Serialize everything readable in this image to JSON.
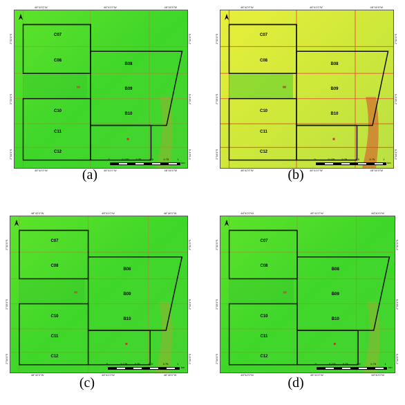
{
  "panels": [
    {
      "caption": "(a)",
      "theme": "green",
      "top_coords": [
        "48°42'0\"W",
        "48°41'0\"W",
        "48°40'0\"W"
      ],
      "bottom_coords": [
        "48°42'0\"W",
        "48°41'0\"W",
        "48°40'0\"W"
      ],
      "left_coords": [
        "2°32'0\"S",
        "2°33'0\"S",
        "2°34'0\"S"
      ],
      "right_coords": [
        "2°32'0\"S",
        "2°33'0\"S",
        "2°34'0\"S"
      ],
      "plots_c": [
        "C07",
        "C08",
        "C10",
        "C11",
        "C12"
      ],
      "plots_b": [
        "B08",
        "B09",
        "B10"
      ]
    },
    {
      "caption": "(b)",
      "theme": "yellow",
      "top_coords": [
        "48°42'0\"W",
        "48°41'0\"W",
        "48°40'0\"W"
      ],
      "bottom_coords": [
        "48°42'0\"W",
        "48°41'0\"W",
        "48°40'0\"W"
      ],
      "left_coords": [
        "2°32'0\"S",
        "2°33'0\"S",
        "2°34'0\"S"
      ],
      "right_coords": [
        "2°32'0\"S",
        "2°33'0\"S",
        "2°34'0\"S"
      ],
      "plots_c": [
        "C07",
        "C08",
        "C10",
        "C11",
        "C12"
      ],
      "plots_b": [
        "B08",
        "B09",
        "B10"
      ]
    },
    {
      "caption": "(c)",
      "theme": "green",
      "top_coords": [
        "48°42'0\"W",
        "48°41'0\"W",
        "48°40'0\"W"
      ],
      "bottom_coords": [
        "48°42'0\"W",
        "48°41'0\"W",
        "48°40'0\"W"
      ],
      "left_coords": [
        "2°32'0\"S",
        "2°33'0\"S",
        "2°34'0\"S"
      ],
      "right_coords": [
        "2°32'0\"S",
        "2°33'0\"S",
        "2°34'0\"S"
      ],
      "plots_c": [
        "C07",
        "C08",
        "C10",
        "C11",
        "C12"
      ],
      "plots_b": [
        "B08",
        "B09",
        "B10"
      ]
    },
    {
      "caption": "(d)",
      "theme": "green",
      "top_coords": [
        "48°42'0\"W",
        "48°41'0\"W",
        "48°40'0\"W"
      ],
      "bottom_coords": [
        "48°42'0\"W",
        "48°41'0\"W",
        "48°40'0\"W"
      ],
      "left_coords": [
        "2°32'0\"S",
        "2°33'0\"S",
        "2°34'0\"S"
      ],
      "right_coords": [
        "2°32'0\"S",
        "2°33'0\"S",
        "2°34'0\"S"
      ],
      "plots_c": [
        "C07",
        "C08",
        "C10",
        "C11",
        "C12"
      ],
      "plots_b": [
        "B08",
        "B09",
        "B10"
      ]
    }
  ],
  "scale_labels": [
    "0",
    "0.125",
    "0.25",
    "0.5",
    "0.75",
    "1"
  ],
  "scale_unit": "km",
  "colors": {
    "green": "#3fd62a",
    "yellow": "#cfe83a",
    "road": "#e85a3a",
    "boundary": "#111111"
  }
}
